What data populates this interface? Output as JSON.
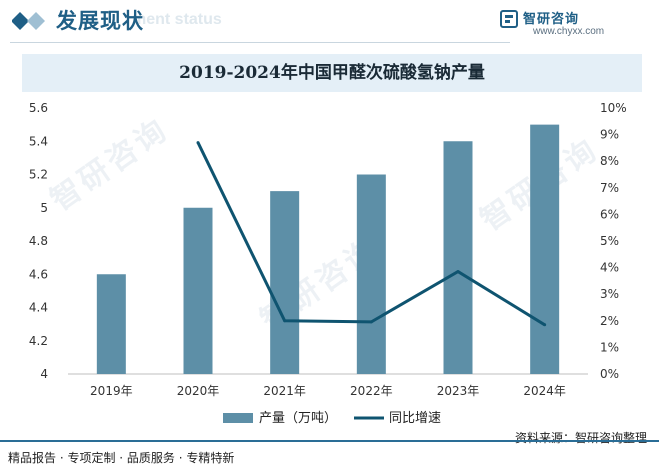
{
  "header": {
    "title": "发展现状",
    "subtitle": "ment status",
    "brand_name": "智研咨询",
    "brand_url": "www.chyxx.com"
  },
  "watermark_text": "智研咨询",
  "footer": {
    "left": "精品报告 · 专项定制 · 品质服务 · 专精特新",
    "right": "资料来源：智研咨询整理"
  },
  "colors": {
    "bar": "#5d8fa7",
    "line": "#0f5470",
    "header_title": "#1f5f86",
    "title_band": "#e4eff7"
  },
  "chart_data": {
    "type": "bar",
    "title": "2019-2024年中国甲醛次硫酸氢钠产量",
    "categories": [
      "2019年",
      "2020年",
      "2021年",
      "2022年",
      "2023年",
      "2024年"
    ],
    "series": [
      {
        "name": "产量（万吨）",
        "type": "bar",
        "axis": "left",
        "values": [
          4.6,
          5.0,
          5.1,
          5.2,
          5.4,
          5.5
        ]
      },
      {
        "name": "同比增速",
        "type": "line",
        "axis": "right",
        "values": [
          null,
          8.7,
          2.0,
          1.96,
          3.85,
          1.85
        ]
      }
    ],
    "y_left": {
      "min": 4,
      "max": 5.6,
      "ticks": [
        "4",
        "4.2",
        "4.4",
        "4.6",
        "4.8",
        "5",
        "5.2",
        "5.4",
        "5.6"
      ]
    },
    "y_right": {
      "min": 0,
      "max": 10,
      "ticks": [
        "0%",
        "1%",
        "2%",
        "3%",
        "4%",
        "5%",
        "6%",
        "7%",
        "8%",
        "9%",
        "10%"
      ]
    },
    "grid": false,
    "legend": "bottom-center"
  }
}
